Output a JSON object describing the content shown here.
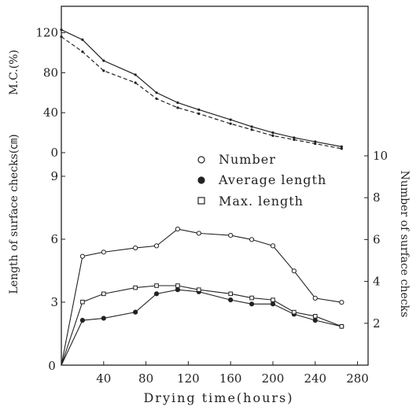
{
  "chart_data": {
    "type": "line",
    "xlabel": "Drying time(hours)",
    "ylabel_left_upper": "M.C.(%)",
    "ylabel_left_lower": "Length of surface checks(㎝)",
    "ylabel_right": "Number of surface checks",
    "x_ticks": [
      "40",
      "80",
      "120",
      "160",
      "200",
      "240",
      "280"
    ],
    "x_range": [
      0,
      290
    ],
    "y_left_upper_ticks": [
      "120",
      "80",
      "40",
      "0"
    ],
    "y_left_lower_ticks": [
      "9",
      "6",
      "3",
      "0"
    ],
    "y_right_ticks": [
      "10",
      "8",
      "6",
      "4",
      "2"
    ],
    "grid": false,
    "legend_position": "center-right",
    "legend": [
      {
        "label": "Number",
        "marker": "open-circle"
      },
      {
        "label": "Average length",
        "marker": "filled-circle"
      },
      {
        "label": "Max. length",
        "marker": "open-square"
      }
    ],
    "mc_series": [
      {
        "style": "solid",
        "x": [
          0,
          20,
          40,
          70,
          90,
          110,
          130,
          160,
          180,
          200,
          220,
          240,
          265
        ],
        "y": [
          123,
          113,
          92,
          78,
          60,
          50,
          43,
          33,
          26,
          20,
          15,
          11,
          6
        ]
      },
      {
        "style": "dashed",
        "x": [
          0,
          20,
          40,
          70,
          90,
          110,
          130,
          160,
          180,
          200,
          220,
          240,
          265
        ],
        "y": [
          116,
          101,
          82,
          70,
          54,
          45,
          39,
          29,
          23,
          17,
          13,
          9,
          4
        ]
      }
    ],
    "checks_series": [
      {
        "name": "Number",
        "axis": "right",
        "marker": "open-circle",
        "x": [
          0,
          20,
          40,
          70,
          90,
          110,
          130,
          160,
          180,
          200,
          220,
          240,
          265
        ],
        "y": [
          0,
          5.2,
          5.4,
          5.6,
          5.7,
          6.5,
          6.3,
          6.2,
          6.0,
          5.7,
          4.5,
          3.2,
          3.0
        ]
      },
      {
        "name": "Average length",
        "axis": "left",
        "marker": "filled-circle",
        "x": [
          0,
          20,
          40,
          70,
          90,
          110,
          130,
          160,
          180,
          200,
          220,
          240,
          265
        ],
        "y": [
          0,
          2.2,
          2.3,
          2.6,
          3.5,
          3.7,
          3.6,
          3.2,
          3.0,
          3.0,
          2.5,
          2.2,
          1.9
        ]
      },
      {
        "name": "Max. length",
        "axis": "left",
        "marker": "open-square",
        "x": [
          0,
          20,
          40,
          70,
          90,
          110,
          130,
          160,
          180,
          200,
          220,
          240,
          265
        ],
        "y": [
          0,
          3.1,
          3.5,
          3.8,
          3.9,
          3.9,
          3.7,
          3.5,
          3.3,
          3.2,
          2.6,
          2.4,
          1.9
        ]
      }
    ]
  }
}
